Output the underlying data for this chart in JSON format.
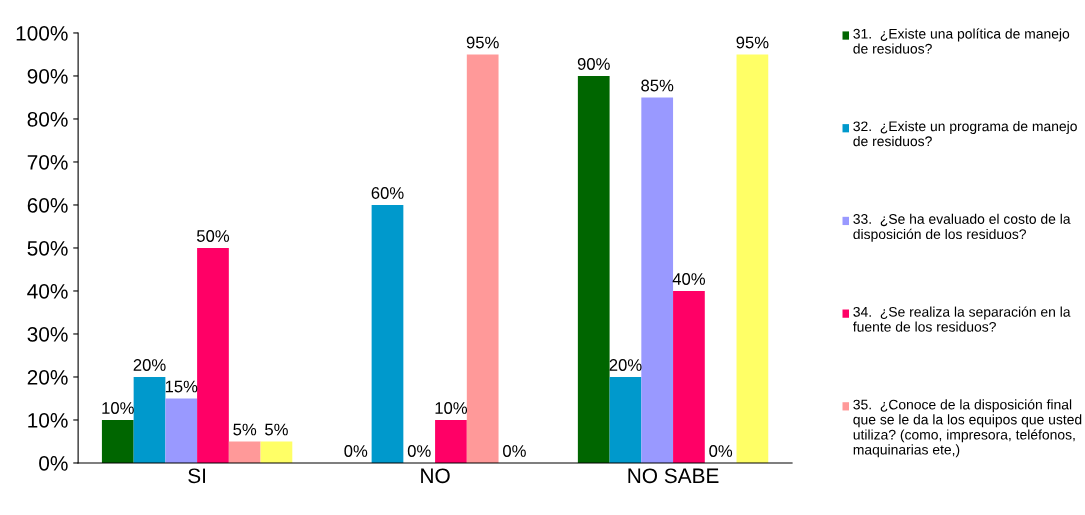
{
  "chart_data": {
    "type": "bar",
    "categories": [
      "SI",
      "NO",
      "NO SABE"
    ],
    "series": [
      {
        "name": "31.  ¿Existe una política de manejo de residuos?",
        "color": "#006600",
        "values": [
          10,
          0,
          90
        ]
      },
      {
        "name": "32.  ¿Existe un programa de manejo de residuos?",
        "color": "#0099cc",
        "values": [
          20,
          60,
          20
        ]
      },
      {
        "name": "33.  ¿Se ha evaluado el costo de la disposición de los residuos?",
        "color": "#9999ff",
        "values": [
          15,
          0,
          85
        ]
      },
      {
        "name": "34.  ¿Se realiza la separación en la fuente de los residuos?",
        "color": "#ff0066",
        "values": [
          50,
          10,
          40
        ]
      },
      {
        "name": "35.  ¿Conoce de la disposición final que se le da la los equipos que usted utiliza? (como, impresora, teléfonos, maquinarias ete,)",
        "color": "#ff9999",
        "values": [
          5,
          95,
          0
        ]
      },
      {
        "color": "#ffff66",
        "values": [
          5,
          0,
          95
        ]
      }
    ],
    "ylim": [
      0,
      100
    ],
    "yticks": [
      {
        "value": 0,
        "label": "0%"
      },
      {
        "value": 10,
        "label": "10%"
      },
      {
        "value": 20,
        "label": "20%"
      },
      {
        "value": 30,
        "label": "30%"
      },
      {
        "value": 40,
        "label": "40%"
      },
      {
        "value": 50,
        "label": "50%"
      },
      {
        "value": 60,
        "label": "60%"
      },
      {
        "value": 70,
        "label": "70%"
      },
      {
        "value": 80,
        "label": "80%"
      },
      {
        "value": 90,
        "label": "90%"
      },
      {
        "value": 100,
        "label": "100%"
      }
    ],
    "value_labels": [
      [
        "10%",
        "0%",
        "90%"
      ],
      [
        "20%",
        "60%",
        "20%"
      ],
      [
        "15%",
        "0%",
        "85%"
      ],
      [
        "50%",
        "10%",
        "40%"
      ],
      [
        "5%",
        "95%",
        "0%"
      ],
      [
        "5%",
        "0%",
        "95%"
      ]
    ],
    "grid": false,
    "legend": "right"
  }
}
